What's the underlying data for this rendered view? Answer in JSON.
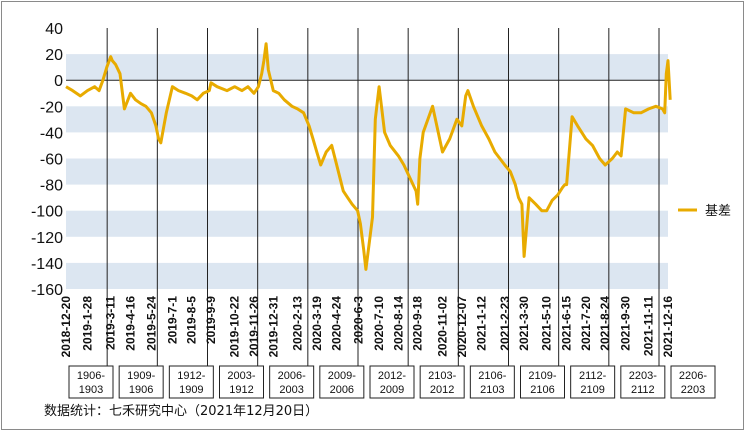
{
  "chart_data": {
    "type": "line",
    "title": "",
    "xlabel": "",
    "ylabel": "",
    "ylim": [
      -160,
      40
    ],
    "yticks": [
      40,
      20,
      0,
      -20,
      -40,
      -60,
      -80,
      -100,
      -120,
      -140,
      -160
    ],
    "band_fill": "#dce6f1",
    "line_color": "#e8ab00",
    "x_tick_labels": [
      "2018-12-20",
      "2019-1-28",
      "2019-3-11",
      "2019-4-16",
      "2019-5-24",
      "2019-7-1",
      "2019-8-5",
      "2019-9-9",
      "2019-10-22",
      "2019-11-26",
      "2019-12-31",
      "2020-2-13",
      "2020-3-19",
      "2020-4-24",
      "2020-6-3",
      "2020-7-10",
      "2020-8-14",
      "2020-9-18",
      "2020-11-02",
      "2020-12-07",
      "2021-1-12",
      "2021-2-23",
      "2021-3-30",
      "2021-5-10",
      "2021-6-15",
      "2021-7-20",
      "2021-8-24",
      "2021-9-30",
      "2021-11-11",
      "2021-12-16"
    ],
    "contract_windows": [
      "1906-1903",
      "1909-1906",
      "1912-1909",
      "2003-1912",
      "2006-2003",
      "2009-2006",
      "2012-2009",
      "2103-2012",
      "2106-2103",
      "2109-2106",
      "2112-2109",
      "2203-2112",
      "2206-2203"
    ],
    "legend_position": "right",
    "series": [
      {
        "name": "基差",
        "x": [
          "2018-12-20",
          "2019-1-1",
          "2019-1-15",
          "2019-1-28",
          "2019-2-10",
          "2019-2-18",
          "2019-2-25",
          "2019-3-4",
          "2019-3-11",
          "2019-3-14",
          "2019-3-20",
          "2019-3-28",
          "2019-4-5",
          "2019-4-16",
          "2019-4-25",
          "2019-5-5",
          "2019-5-14",
          "2019-5-24",
          "2019-6-1",
          "2019-6-6",
          "2019-6-10",
          "2019-6-20",
          "2019-7-1",
          "2019-7-12",
          "2019-7-25",
          "2019-8-5",
          "2019-8-15",
          "2019-8-26",
          "2019-9-6",
          "2019-9-9",
          "2019-9-20",
          "2019-10-8",
          "2019-10-22",
          "2019-11-4",
          "2019-11-15",
          "2019-11-26",
          "2019-12-4",
          "2019-12-10",
          "2019-12-14",
          "2019-12-18",
          "2019-12-22",
          "2019-12-31",
          "2020-1-10",
          "2020-1-20",
          "2020-2-3",
          "2020-2-13",
          "2020-2-24",
          "2020-3-5",
          "2020-3-12",
          "2020-3-19",
          "2020-3-26",
          "2020-4-5",
          "2020-4-15",
          "2020-4-24",
          "2020-5-6",
          "2020-5-14",
          "2020-5-22",
          "2020-6-1",
          "2020-6-6",
          "2020-6-12",
          "2020-6-16",
          "2020-6-22",
          "2020-6-28",
          "2020-7-3",
          "2020-7-10",
          "2020-7-20",
          "2020-7-30",
          "2020-8-14",
          "2020-8-24",
          "2020-9-4",
          "2020-9-15",
          "2020-9-18",
          "2020-9-22",
          "2020-9-28",
          "2020-10-15",
          "2020-11-2",
          "2020-11-15",
          "2020-11-28",
          "2020-12-7",
          "2020-12-10",
          "2020-12-14",
          "2020-12-18",
          "2020-12-28",
          "2021-1-12",
          "2021-1-25",
          "2021-2-5",
          "2021-2-23",
          "2021-3-5",
          "2021-3-14",
          "2021-3-20",
          "2021-3-26",
          "2021-3-30",
          "2021-4-8",
          "2021-4-20",
          "2021-5-1",
          "2021-5-10",
          "2021-5-20",
          "2021-5-30",
          "2021-6-8",
          "2021-6-12",
          "2021-6-15",
          "2021-6-25",
          "2021-7-5",
          "2021-7-20",
          "2021-8-1",
          "2021-8-14",
          "2021-8-24",
          "2021-9-6",
          "2021-9-15",
          "2021-9-22",
          "2021-9-30",
          "2021-10-15",
          "2021-10-28",
          "2021-11-11",
          "2021-11-24",
          "2021-12-6",
          "2021-12-10",
          "2021-12-13",
          "2021-12-16",
          "2021-12-20"
        ],
        "values": [
          -5,
          -8,
          -12,
          -8,
          -5,
          -8,
          0,
          10,
          18,
          15,
          12,
          5,
          -22,
          -10,
          -15,
          -18,
          -20,
          -25,
          -35,
          -45,
          -48,
          -25,
          -5,
          -8,
          -10,
          -12,
          -15,
          -10,
          -8,
          -2,
          -5,
          -8,
          -5,
          -8,
          -5,
          -10,
          -5,
          5,
          15,
          28,
          8,
          -8,
          -10,
          -15,
          -20,
          -22,
          -25,
          -35,
          -45,
          -55,
          -65,
          -55,
          -50,
          -65,
          -85,
          -90,
          -95,
          -100,
          -110,
          -130,
          -145,
          -125,
          -105,
          -30,
          -5,
          -40,
          -50,
          -58,
          -65,
          -75,
          -85,
          -95,
          -60,
          -40,
          -20,
          -55,
          -45,
          -30,
          -35,
          -25,
          -12,
          -8,
          -20,
          -35,
          -45,
          -55,
          -65,
          -70,
          -80,
          -90,
          -95,
          -135,
          -90,
          -95,
          -100,
          -100,
          -92,
          -88,
          -82,
          -80,
          -80,
          -28,
          -35,
          -45,
          -50,
          -60,
          -65,
          -60,
          -55,
          -58,
          -22,
          -25,
          -25,
          -22,
          -20,
          -22,
          -25,
          5,
          15,
          -15
        ]
      }
    ]
  },
  "footer": {
    "source": "数据统计：七禾研究中心（2021年12月20日）"
  }
}
